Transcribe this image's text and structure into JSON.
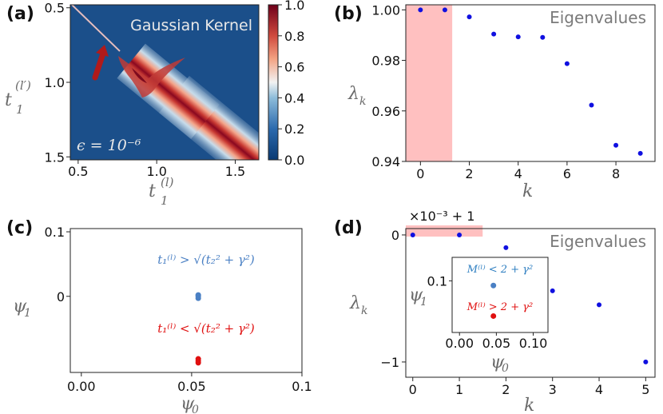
{
  "panels": {
    "a": {
      "label": "(a)",
      "title": "Gaussian Kernel",
      "epsilon": "ϵ = 10⁻⁶",
      "xlabel": "t",
      "xlabel_sup": "(l)",
      "xlabel_sub": "1",
      "ylabel": "t",
      "ylabel_sup": "(l′)",
      "ylabel_sub": "1",
      "colors": {
        "low": "#1b4f8a",
        "mid": "#f7f7f7",
        "high": "#8b0a1e",
        "arrow": "#b11a1a"
      }
    },
    "b": {
      "label": "(b)",
      "annotation": "Eigenvalues",
      "ylabel": "λ",
      "ylabel_sub": "k",
      "xlabel": "k",
      "highlight_color": "#ffc0c0",
      "point_color": "#1010e0"
    },
    "c": {
      "label": "(c)",
      "ylabel": "ψ",
      "ylabel_sub": "1",
      "xlabel": "ψ",
      "xlabel_sub": "0",
      "cond_blue": "t₁⁽ˡ⁾ > √(t₂² + γ²)",
      "cond_red": "t₁⁽ˡ⁾ < √(t₂² + γ²)",
      "blue": "#4a80c4",
      "red": "#e01010"
    },
    "d": {
      "label": "(d)",
      "annotation": "Eigenvalues",
      "offset_label": "×10⁻³ + 1",
      "ylabel": "λ",
      "ylabel_sub": "k",
      "xlabel": "k",
      "inset_ylabel": "ψ",
      "inset_ylabel_sub": "1",
      "inset_xlabel": "ψ",
      "inset_xlabel_sub": "0",
      "inset_blue": "M⁽ˡ⁾ < 2 + γ²",
      "inset_red": "M⁽ˡ⁾ > 2 + γ²"
    }
  },
  "chart_data": [
    {
      "panel": "a",
      "type": "heatmap",
      "title": "Gaussian Kernel",
      "xlim": [
        0.45,
        1.65
      ],
      "ylim": [
        1.52,
        0.48
      ],
      "x_ticks": [
        "0.5",
        "1.0",
        "1.5"
      ],
      "y_ticks": [
        "0.5",
        "1.0",
        "1.5"
      ],
      "colorbar": {
        "range": [
          0.0,
          1.0
        ],
        "ticks": [
          "0.0",
          "0.2",
          "0.4",
          "0.6",
          "0.8",
          "1.0"
        ]
      }
    },
    {
      "panel": "b",
      "type": "scatter",
      "x": [
        0,
        1,
        2,
        3,
        4,
        5,
        6,
        7,
        8,
        9
      ],
      "y": [
        1.0,
        1.0,
        0.9972,
        0.9904,
        0.9893,
        0.9891,
        0.9787,
        0.9623,
        0.9464,
        0.9432
      ],
      "xlim": [
        -0.6,
        9.6
      ],
      "ylim": [
        0.94,
        1.002
      ],
      "x_ticks": [
        "0",
        "2",
        "4",
        "6",
        "8"
      ],
      "y_ticks": [
        "0.94",
        "0.96",
        "0.98",
        "1.00"
      ],
      "highlight_x": [
        -0.6,
        1.3
      ]
    },
    {
      "panel": "c",
      "type": "scatter",
      "series": [
        {
          "name": "blue",
          "x": [
            0.053,
            0.053,
            0.053
          ],
          "y": [
            0.0,
            0.002,
            -0.003
          ]
        },
        {
          "name": "red",
          "x": [
            0.053,
            0.053,
            0.053
          ],
          "y": [
            -0.1,
            -0.097,
            -0.103
          ]
        }
      ],
      "xlim": [
        -0.005,
        0.1
      ],
      "ylim": [
        -0.118,
        0.105
      ],
      "x_ticks": [
        "0.00",
        "0.05",
        "0.1"
      ],
      "y_ticks": [
        "0",
        "0.1"
      ]
    },
    {
      "panel": "d",
      "type": "scatter",
      "x": [
        0,
        1,
        2,
        3,
        4,
        5
      ],
      "y": [
        0.0,
        0.0,
        -0.1,
        -0.44,
        -0.55,
        -1.0
      ],
      "xlim": [
        -0.15,
        5.2
      ],
      "ylim": [
        -1.12,
        0.05
      ],
      "x_ticks": [
        "0",
        "1",
        "2",
        "3",
        "4",
        "5"
      ],
      "y_ticks": [
        "−1",
        "0"
      ],
      "highlight_x": [
        -0.15,
        1.5
      ],
      "inset": {
        "series": [
          {
            "name": "blue",
            "x": [
              0.046
            ],
            "y": [
              0.08
            ]
          },
          {
            "name": "red",
            "x": [
              0.046
            ],
            "y": [
              -0.05
            ]
          }
        ],
        "xlim": [
          -0.01,
          0.12
        ],
        "ylim": [
          -0.12,
          0.2
        ],
        "x_ticks": [
          "0.00",
          "0.05",
          "0.10"
        ],
        "y_ticks": [
          "0.1"
        ]
      }
    }
  ]
}
